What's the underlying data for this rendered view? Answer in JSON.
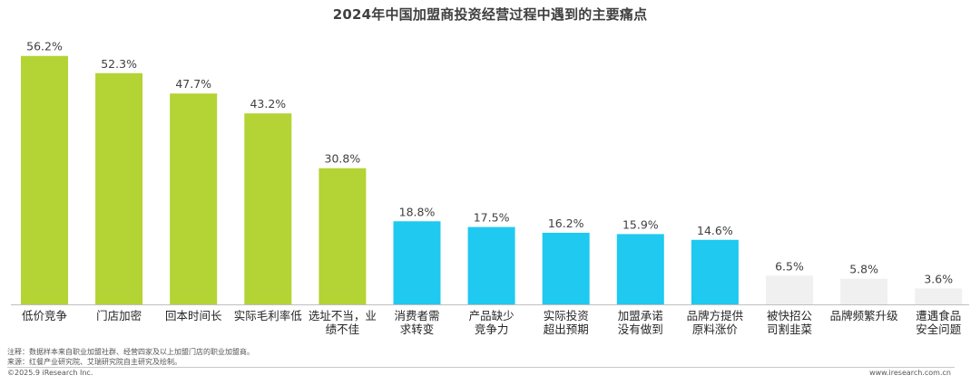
{
  "title": "2024年中国加盟商投资经营过程中遇到的主要痛点",
  "notes": {
    "note": "注释：数据样本来自职业加盟社群、经营四家及以上加盟门店的职业加盟商。",
    "source": "来源：红餐产业研究院、艾瑞研究院自主研究及绘制。",
    "copyright": "©2025.9 iResearch Inc.",
    "website": "www.iresearch.com.cn"
  },
  "colors": {
    "green": "#b4d334",
    "blue": "#1fc9f0",
    "gray": "#f0f0f0"
  },
  "chart_data": {
    "type": "bar",
    "title": "2024年中国加盟商投资经营过程中遇到的主要痛点",
    "xlabel": "",
    "ylabel": "",
    "ylim": [
      0,
      60
    ],
    "grid": false,
    "categories": [
      [
        "低价竞争"
      ],
      [
        "门店加密"
      ],
      [
        "回本时间长"
      ],
      [
        "实际毛利率低"
      ],
      [
        "选址不当，业",
        "绩不佳"
      ],
      [
        "消费者需",
        "求转变"
      ],
      [
        "产品缺少",
        "竞争力"
      ],
      [
        "实际投资",
        "超出预期"
      ],
      [
        "加盟承诺",
        "没有做到"
      ],
      [
        "品牌方提供",
        "原料涨价"
      ],
      [
        "被快招公",
        "司割韭菜"
      ],
      [
        "品牌频繁升级"
      ],
      [
        "遭遇食品",
        "安全问题"
      ]
    ],
    "values": [
      56.2,
      52.3,
      47.7,
      43.2,
      30.8,
      18.8,
      17.5,
      16.2,
      15.9,
      14.6,
      6.5,
      5.8,
      3.6
    ],
    "value_labels": [
      "56.2%",
      "52.3%",
      "47.7%",
      "43.2%",
      "30.8%",
      "18.8%",
      "17.5%",
      "16.2%",
      "15.9%",
      "14.6%",
      "6.5%",
      "5.8%",
      "3.6%"
    ],
    "bar_colors": [
      "green",
      "green",
      "green",
      "green",
      "green",
      "blue",
      "blue",
      "blue",
      "blue",
      "blue",
      "gray",
      "gray",
      "gray"
    ]
  }
}
